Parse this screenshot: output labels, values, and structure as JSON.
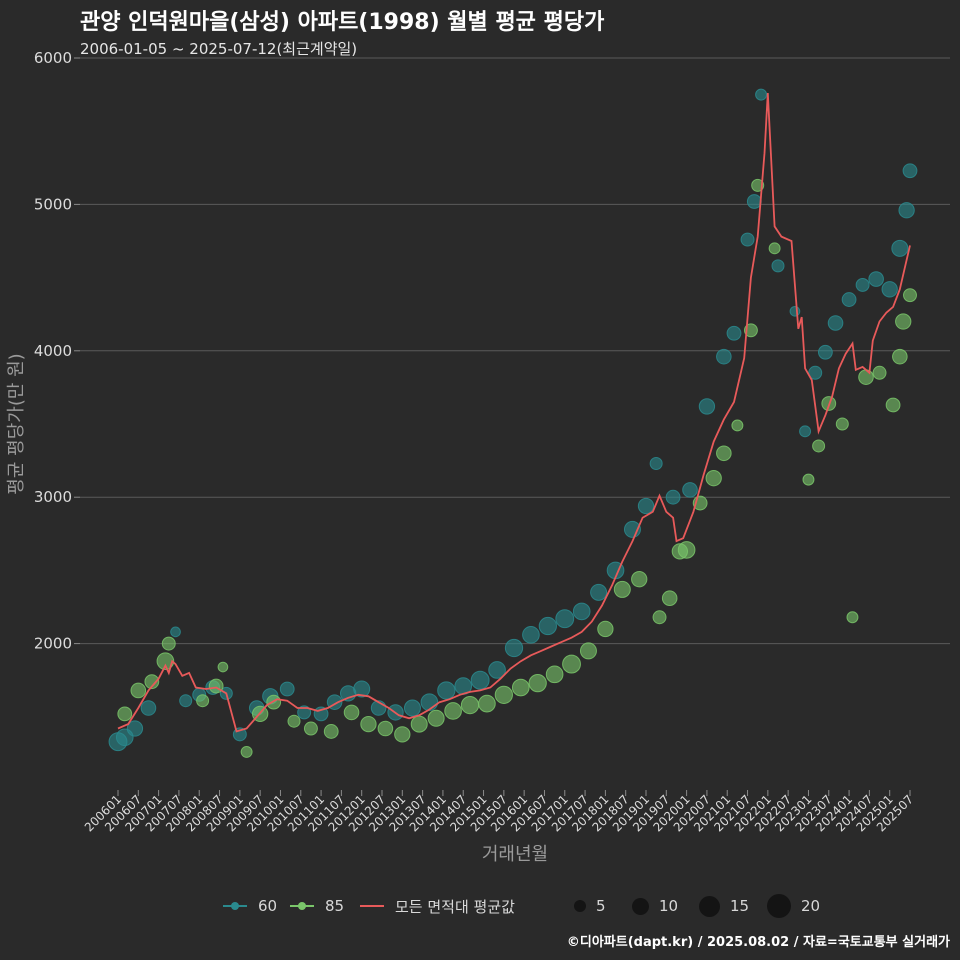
{
  "title": "관양 인덕원마을(삼성) 아파트(1998) 월별 평균 평당가",
  "subtitle": "2006-01-05 ~ 2025-07-12(최근계약일)",
  "caption": "©디아파트(dapt.kr) / 2025.08.02 / 자료=국토교통부 실거래가",
  "legend": {
    "series": [
      {
        "label": "60",
        "color": "#2a8a8e",
        "icon": "line-dot-key"
      },
      {
        "label": "85",
        "color": "#7ac66a",
        "icon": "line-dot-key"
      },
      {
        "label": "모든 면적대 평균값",
        "color": "#e85a5a",
        "icon": "line-key"
      }
    ],
    "sizes": [
      {
        "label": "5",
        "value": 5
      },
      {
        "label": "10",
        "value": 10
      },
      {
        "label": "15",
        "value": 15
      },
      {
        "label": "20",
        "value": 20
      }
    ]
  },
  "chart_data": {
    "type": "scatter",
    "xlabel": "거래년월",
    "ylabel": "평균 평당가(만 원)",
    "ylim": [
      1000,
      6000
    ],
    "yticks": [
      2000,
      3000,
      4000,
      5000,
      6000
    ],
    "x_range": [
      "2006-01",
      "2025-07"
    ],
    "x_tick_labels": [
      "200601",
      "200607",
      "200701",
      "200707",
      "200801",
      "200807",
      "200901",
      "200907",
      "201001",
      "201007",
      "201101",
      "201107",
      "201201",
      "201207",
      "201301",
      "201307",
      "201401",
      "201407",
      "201501",
      "201507",
      "201601",
      "201607",
      "201701",
      "201707",
      "201801",
      "201807",
      "201901",
      "201907",
      "202001",
      "202007",
      "202101",
      "202107",
      "202201",
      "202207",
      "202301",
      "202307",
      "202401",
      "202407",
      "202501",
      "202507"
    ],
    "grid": "horizontal",
    "legend_position": "bottom",
    "series": [
      {
        "name": "60",
        "color": "#2a8a8e",
        "points": [
          [
            "2006-01",
            1330,
            12
          ],
          [
            "2006-03",
            1360,
            10
          ],
          [
            "2006-06",
            1420,
            8
          ],
          [
            "2006-10",
            1560,
            7
          ],
          [
            "2007-06",
            2080,
            2
          ],
          [
            "2007-09",
            1610,
            4
          ],
          [
            "2008-01",
            1650,
            5
          ],
          [
            "2008-05",
            1700,
            6
          ],
          [
            "2008-09",
            1660,
            4
          ],
          [
            "2009-01",
            1380,
            5
          ],
          [
            "2009-06",
            1560,
            7
          ],
          [
            "2009-10",
            1640,
            8
          ],
          [
            "2010-03",
            1690,
            6
          ],
          [
            "2010-08",
            1530,
            5
          ],
          [
            "2011-01",
            1520,
            6
          ],
          [
            "2011-05",
            1600,
            7
          ],
          [
            "2011-09",
            1660,
            8
          ],
          [
            "2012-01",
            1690,
            9
          ],
          [
            "2012-06",
            1560,
            7
          ],
          [
            "2012-11",
            1530,
            8
          ],
          [
            "2013-04",
            1560,
            9
          ],
          [
            "2013-09",
            1600,
            10
          ],
          [
            "2014-02",
            1680,
            11
          ],
          [
            "2014-07",
            1710,
            10
          ],
          [
            "2014-12",
            1750,
            12
          ],
          [
            "2015-05",
            1820,
            10
          ],
          [
            "2015-10",
            1970,
            11
          ],
          [
            "2016-03",
            2060,
            10
          ],
          [
            "2016-08",
            2120,
            11
          ],
          [
            "2017-01",
            2170,
            12
          ],
          [
            "2017-06",
            2220,
            10
          ],
          [
            "2017-11",
            2350,
            9
          ],
          [
            "2018-04",
            2500,
            10
          ],
          [
            "2018-09",
            2780,
            9
          ],
          [
            "2019-01",
            2940,
            8
          ],
          [
            "2019-04",
            3230,
            4
          ],
          [
            "2019-09",
            3000,
            6
          ],
          [
            "2020-02",
            3050,
            7
          ],
          [
            "2020-07",
            3620,
            8
          ],
          [
            "2020-12",
            3960,
            7
          ],
          [
            "2021-03",
            4120,
            6
          ],
          [
            "2021-07",
            4760,
            5
          ],
          [
            "2021-09",
            5020,
            6
          ],
          [
            "2021-11",
            5750,
            3
          ],
          [
            "2022-04",
            4580,
            4
          ],
          [
            "2022-09",
            4270,
            2
          ],
          [
            "2022-12",
            3450,
            3
          ],
          [
            "2023-03",
            3850,
            5
          ],
          [
            "2023-06",
            3990,
            6
          ],
          [
            "2023-09",
            4190,
            7
          ],
          [
            "2024-01",
            4350,
            6
          ],
          [
            "2024-05",
            4450,
            5
          ],
          [
            "2024-09",
            4490,
            7
          ],
          [
            "2025-01",
            4420,
            8
          ],
          [
            "2025-04",
            4700,
            9
          ],
          [
            "2025-06",
            4960,
            8
          ],
          [
            "2025-07",
            5230,
            6
          ]
        ]
      },
      {
        "name": "85",
        "color": "#7ac66a",
        "points": [
          [
            "2006-03",
            1520,
            6
          ],
          [
            "2006-07",
            1680,
            7
          ],
          [
            "2006-11",
            1740,
            6
          ],
          [
            "2007-03",
            1880,
            10
          ],
          [
            "2007-04",
            2000,
            5
          ],
          [
            "2008-02",
            1610,
            4
          ],
          [
            "2008-06",
            1710,
            6
          ],
          [
            "2008-08",
            1840,
            2
          ],
          [
            "2009-03",
            1260,
            3
          ],
          [
            "2009-07",
            1520,
            8
          ],
          [
            "2009-11",
            1600,
            6
          ],
          [
            "2010-05",
            1470,
            4
          ],
          [
            "2010-10",
            1420,
            5
          ],
          [
            "2011-04",
            1400,
            6
          ],
          [
            "2011-10",
            1530,
            7
          ],
          [
            "2012-03",
            1450,
            8
          ],
          [
            "2012-08",
            1420,
            7
          ],
          [
            "2013-01",
            1380,
            8
          ],
          [
            "2013-06",
            1450,
            9
          ],
          [
            "2013-11",
            1490,
            9
          ],
          [
            "2014-04",
            1540,
            10
          ],
          [
            "2014-09",
            1580,
            11
          ],
          [
            "2015-02",
            1590,
            10
          ],
          [
            "2015-07",
            1650,
            11
          ],
          [
            "2015-12",
            1700,
            10
          ],
          [
            "2016-05",
            1730,
            11
          ],
          [
            "2016-10",
            1790,
            10
          ],
          [
            "2017-03",
            1860,
            12
          ],
          [
            "2017-08",
            1950,
            9
          ],
          [
            "2018-01",
            2100,
            8
          ],
          [
            "2018-06",
            2370,
            9
          ],
          [
            "2018-11",
            2440,
            8
          ],
          [
            "2019-05",
            2180,
            5
          ],
          [
            "2019-08",
            2310,
            7
          ],
          [
            "2019-11",
            2630,
            8
          ],
          [
            "2020-01",
            2640,
            10
          ],
          [
            "2020-05",
            2960,
            6
          ],
          [
            "2020-09",
            3130,
            8
          ],
          [
            "2020-12",
            3300,
            7
          ],
          [
            "2021-04",
            3490,
            3
          ],
          [
            "2021-08",
            4140,
            5
          ],
          [
            "2021-10",
            5130,
            4
          ],
          [
            "2022-03",
            4700,
            3
          ],
          [
            "2023-01",
            3120,
            3
          ],
          [
            "2023-04",
            3350,
            4
          ],
          [
            "2023-07",
            3640,
            6
          ],
          [
            "2023-11",
            3500,
            4
          ],
          [
            "2024-02",
            2180,
            3
          ],
          [
            "2024-06",
            3820,
            7
          ],
          [
            "2024-10",
            3850,
            5
          ],
          [
            "2025-02",
            3630,
            6
          ],
          [
            "2025-04",
            3960,
            7
          ],
          [
            "2025-05",
            4200,
            8
          ],
          [
            "2025-07",
            4380,
            5
          ]
        ]
      },
      {
        "name": "모든 면적대 평균값",
        "color": "#e85a5a",
        "type": "line",
        "points": [
          [
            "2006-01",
            1420
          ],
          [
            "2006-04",
            1450
          ],
          [
            "2006-07",
            1560
          ],
          [
            "2006-10",
            1680
          ],
          [
            "2007-01",
            1760
          ],
          [
            "2007-03",
            1850
          ],
          [
            "2007-04",
            1800
          ],
          [
            "2007-05",
            1880
          ],
          [
            "2007-06",
            1860
          ],
          [
            "2007-08",
            1780
          ],
          [
            "2007-10",
            1800
          ],
          [
            "2007-12",
            1700
          ],
          [
            "2008-03",
            1690
          ],
          [
            "2008-06",
            1700
          ],
          [
            "2008-09",
            1660
          ],
          [
            "2008-12",
            1400
          ],
          [
            "2009-03",
            1420
          ],
          [
            "2009-06",
            1500
          ],
          [
            "2009-09",
            1580
          ],
          [
            "2009-12",
            1620
          ],
          [
            "2010-03",
            1610
          ],
          [
            "2010-06",
            1560
          ],
          [
            "2010-09",
            1560
          ],
          [
            "2010-12",
            1540
          ],
          [
            "2011-03",
            1560
          ],
          [
            "2011-06",
            1600
          ],
          [
            "2011-09",
            1630
          ],
          [
            "2011-12",
            1650
          ],
          [
            "2012-03",
            1640
          ],
          [
            "2012-06",
            1600
          ],
          [
            "2012-09",
            1560
          ],
          [
            "2012-12",
            1510
          ],
          [
            "2013-03",
            1490
          ],
          [
            "2013-06",
            1510
          ],
          [
            "2013-09",
            1550
          ],
          [
            "2013-12",
            1600
          ],
          [
            "2014-03",
            1620
          ],
          [
            "2014-06",
            1650
          ],
          [
            "2014-09",
            1670
          ],
          [
            "2014-12",
            1680
          ],
          [
            "2015-03",
            1700
          ],
          [
            "2015-06",
            1760
          ],
          [
            "2015-09",
            1830
          ],
          [
            "2015-12",
            1880
          ],
          [
            "2016-03",
            1920
          ],
          [
            "2016-06",
            1950
          ],
          [
            "2016-09",
            1980
          ],
          [
            "2016-12",
            2010
          ],
          [
            "2017-03",
            2040
          ],
          [
            "2017-06",
            2080
          ],
          [
            "2017-09",
            2150
          ],
          [
            "2017-12",
            2260
          ],
          [
            "2018-03",
            2400
          ],
          [
            "2018-06",
            2560
          ],
          [
            "2018-09",
            2700
          ],
          [
            "2018-12",
            2860
          ],
          [
            "2019-03",
            2900
          ],
          [
            "2019-05",
            3010
          ],
          [
            "2019-07",
            2900
          ],
          [
            "2019-09",
            2860
          ],
          [
            "2019-10",
            2700
          ],
          [
            "2019-12",
            2720
          ],
          [
            "2020-03",
            2900
          ],
          [
            "2020-06",
            3150
          ],
          [
            "2020-09",
            3380
          ],
          [
            "2020-12",
            3530
          ],
          [
            "2021-03",
            3650
          ],
          [
            "2021-06",
            3950
          ],
          [
            "2021-08",
            4500
          ],
          [
            "2021-10",
            4780
          ],
          [
            "2021-12",
            5350
          ],
          [
            "2022-01",
            5760
          ],
          [
            "2022-03",
            4850
          ],
          [
            "2022-05",
            4780
          ],
          [
            "2022-08",
            4750
          ],
          [
            "2022-10",
            4150
          ],
          [
            "2022-11",
            4230
          ],
          [
            "2022-12",
            3880
          ],
          [
            "2023-02",
            3800
          ],
          [
            "2023-04",
            3450
          ],
          [
            "2023-06",
            3560
          ],
          [
            "2023-08",
            3690
          ],
          [
            "2023-10",
            3880
          ],
          [
            "2023-12",
            3980
          ],
          [
            "2024-02",
            4050
          ],
          [
            "2024-03",
            3870
          ],
          [
            "2024-05",
            3890
          ],
          [
            "2024-07",
            3850
          ],
          [
            "2024-08",
            4070
          ],
          [
            "2024-10",
            4200
          ],
          [
            "2024-12",
            4260
          ],
          [
            "2025-02",
            4300
          ],
          [
            "2025-04",
            4420
          ],
          [
            "2025-07",
            4720
          ]
        ]
      }
    ]
  }
}
